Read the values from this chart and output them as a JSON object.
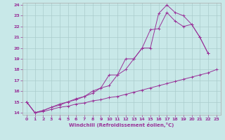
{
  "xlabel": "Windchill (Refroidissement éolien,°C)",
  "background_color": "#c8e8e8",
  "grid_color": "#aacccc",
  "line_color": "#993399",
  "xmin": 0,
  "xmax": 23,
  "ymin": 14,
  "ymax": 24,
  "yticks": [
    14,
    15,
    16,
    17,
    18,
    19,
    20,
    21,
    22,
    23,
    24
  ],
  "xticks": [
    0,
    1,
    2,
    3,
    4,
    5,
    6,
    7,
    8,
    9,
    10,
    11,
    12,
    13,
    14,
    15,
    16,
    17,
    18,
    19,
    20,
    21,
    22,
    23
  ],
  "line1_x": [
    0,
    1,
    2,
    3,
    4,
    5,
    6,
    7,
    8,
    9,
    10,
    11,
    12,
    13,
    14,
    15,
    16,
    17,
    18,
    19,
    20,
    21,
    22,
    23
  ],
  "line1_y": [
    15.0,
    14.0,
    14.1,
    14.3,
    14.5,
    14.6,
    14.8,
    14.9,
    15.1,
    15.2,
    15.4,
    15.5,
    15.7,
    15.9,
    16.1,
    16.3,
    16.5,
    16.7,
    16.9,
    17.1,
    17.3,
    17.5,
    17.7,
    18.0
  ],
  "line2_x": [
    0,
    1,
    2,
    3,
    4,
    5,
    6,
    7,
    8,
    9,
    10,
    11,
    12,
    13,
    14,
    15,
    16,
    17,
    18,
    19,
    20,
    21,
    22,
    23
  ],
  "line2_y": [
    15.0,
    14.0,
    14.2,
    14.5,
    14.8,
    15.0,
    15.3,
    15.5,
    15.8,
    16.3,
    17.5,
    17.5,
    19.0,
    19.0,
    20.0,
    21.7,
    21.8,
    23.3,
    22.5,
    22.0,
    22.2,
    21.0,
    19.5,
    null
  ],
  "line3_x": [
    0,
    1,
    2,
    3,
    4,
    5,
    6,
    7,
    8,
    9,
    10,
    11,
    12,
    13,
    14,
    15,
    16,
    17,
    18,
    19,
    20,
    21,
    22,
    23
  ],
  "line3_y": [
    15.0,
    14.0,
    14.2,
    14.5,
    14.7,
    15.0,
    15.2,
    15.5,
    16.0,
    16.3,
    16.5,
    17.5,
    18.0,
    19.0,
    20.0,
    20.0,
    23.2,
    24.0,
    23.3,
    23.0,
    22.2,
    21.0,
    19.5,
    null
  ]
}
